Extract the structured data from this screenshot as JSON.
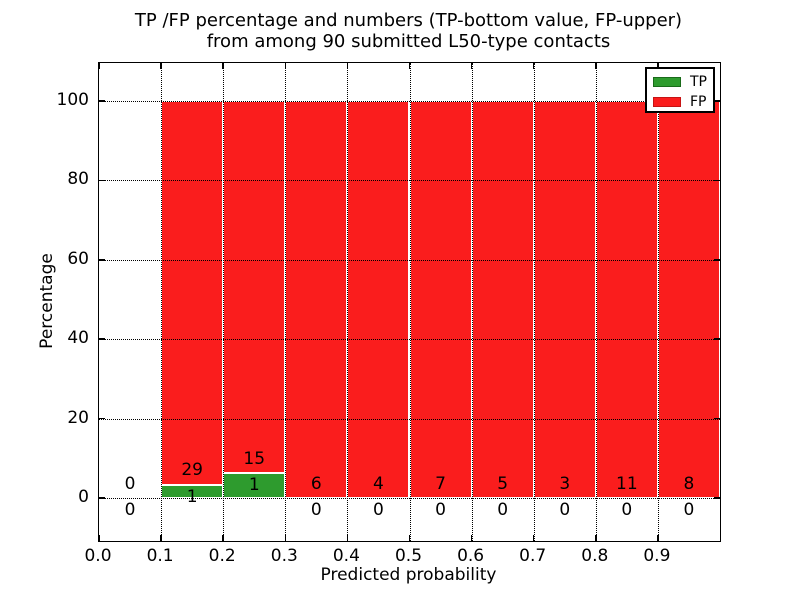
{
  "figure": {
    "title_line1": "TP /FP percentage and numbers (TP-bottom value, FP-upper)",
    "title_line2": "from among 90 submitted L50-type contacts"
  },
  "chart_data": {
    "type": "bar",
    "stacked": true,
    "title": "TP /FP percentage and numbers (TP-bottom value, FP-upper) from among 90 submitted L50-type contacts",
    "xlabel": "Predicted probability",
    "ylabel": "Percentage",
    "xlim": [
      0.0,
      1.0
    ],
    "ylim": [
      -10.8,
      109.6
    ],
    "xticks": [
      0.0,
      0.1,
      0.2,
      0.3,
      0.4,
      0.5,
      0.6,
      0.7,
      0.8,
      0.9
    ],
    "xtick_labels": [
      "0.0",
      "0.1",
      "0.2",
      "0.3",
      "0.4",
      "0.5",
      "0.6",
      "0.7",
      "0.8",
      "0.9"
    ],
    "yticks": [
      0,
      20,
      40,
      60,
      80,
      100
    ],
    "ytick_labels": [
      "0",
      "20",
      "40",
      "60",
      "80",
      "100"
    ],
    "grid": true,
    "grid_style": "dotted",
    "grid_above_bars": true,
    "total_contacts": 90,
    "legend": {
      "position": "upper right",
      "entries": [
        {
          "label": "TP",
          "color": "#2e9b2e"
        },
        {
          "label": "FP",
          "color": "#fa1d1d"
        }
      ]
    },
    "bins": [
      {
        "range": [
          0.0,
          0.1
        ],
        "tp": 0,
        "fp": 0
      },
      {
        "range": [
          0.1,
          0.2
        ],
        "tp": 1,
        "fp": 29
      },
      {
        "range": [
          0.2,
          0.3
        ],
        "tp": 1,
        "fp": 15
      },
      {
        "range": [
          0.3,
          0.4
        ],
        "tp": 0,
        "fp": 6
      },
      {
        "range": [
          0.4,
          0.5
        ],
        "tp": 0,
        "fp": 4
      },
      {
        "range": [
          0.5,
          0.6
        ],
        "tp": 0,
        "fp": 7
      },
      {
        "range": [
          0.6,
          0.7
        ],
        "tp": 0,
        "fp": 5
      },
      {
        "range": [
          0.7,
          0.8
        ],
        "tp": 0,
        "fp": 3
      },
      {
        "range": [
          0.8,
          0.9
        ],
        "tp": 0,
        "fp": 11
      },
      {
        "range": [
          0.9,
          1.0
        ],
        "tp": 0,
        "fp": 8
      }
    ],
    "bar_value_semantics": "segment heights are percentages tp/(tp+fp)*100 and fp/(tp+fp)*100; stacked total is 100%"
  },
  "colors": {
    "tp": "#2e9b2e",
    "tp_edge": "#1a6b1a",
    "fp": "#fa1d1d",
    "fp_edge": "#c61414",
    "bar_edge": "#ffffff",
    "grid": "#000000",
    "text": "#000000",
    "background": "#ffffff"
  }
}
